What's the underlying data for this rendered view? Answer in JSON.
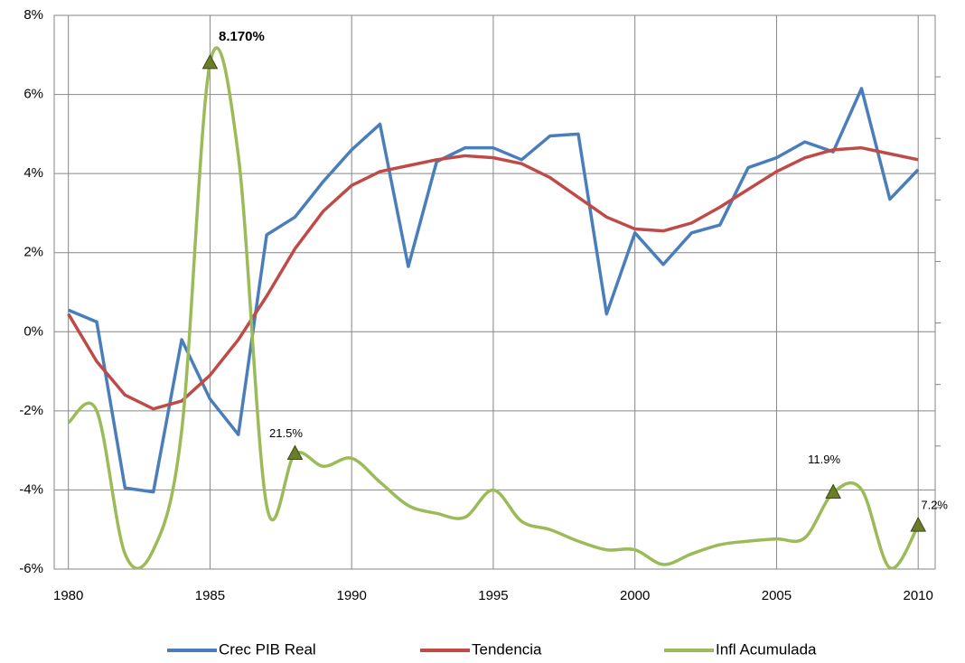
{
  "chart_data": {
    "type": "line",
    "x": [
      1980,
      1981,
      1982,
      1983,
      1984,
      1985,
      1986,
      1987,
      1988,
      1989,
      1990,
      1991,
      1992,
      1993,
      1994,
      1995,
      1996,
      1997,
      1998,
      1999,
      2000,
      2001,
      2002,
      2003,
      2004,
      2005,
      2006,
      2007,
      2008,
      2009,
      2010
    ],
    "series": [
      {
        "name": "Crec PIB Real",
        "color": "#4a7ebb",
        "values": [
          0.55,
          0.25,
          -3.95,
          -4.05,
          -0.2,
          -1.7,
          -2.6,
          2.45,
          2.9,
          3.8,
          4.6,
          5.25,
          1.65,
          4.3,
          4.65,
          4.65,
          4.35,
          4.95,
          5.0,
          0.45,
          2.5,
          1.7,
          2.5,
          2.7,
          4.15,
          4.4,
          4.8,
          4.55,
          6.15,
          3.35,
          4.1
        ]
      },
      {
        "name": "Tendencia",
        "color": "#be4b48",
        "values": [
          0.45,
          -0.75,
          -1.6,
          -1.95,
          -1.75,
          -1.1,
          -0.2,
          0.9,
          2.1,
          3.05,
          3.7,
          4.05,
          4.2,
          4.35,
          4.45,
          4.4,
          4.25,
          3.9,
          3.4,
          2.9,
          2.6,
          2.55,
          2.75,
          3.15,
          3.6,
          4.05,
          4.4,
          4.6,
          4.65,
          4.5,
          4.35
        ]
      },
      {
        "name": "Infl Acumulada",
        "color": "#9bbb59",
        "axis": "y2",
        "smooth": true,
        "values": [
          34.6,
          41.4,
          4.7,
          5.0,
          30.6,
          8170,
          2000,
          9.8,
          21.5,
          17.8,
          20.1,
          14.0,
          9.8,
          8.7,
          8.2,
          12.4,
          7.7,
          6.8,
          5.7,
          5.0,
          5.0,
          4.0,
          4.7,
          5.4,
          5.7,
          5.9,
          6.0,
          11.9,
          12.5,
          3.8,
          7.2
        ],
        "value_labels": [
          null,
          null,
          null,
          null,
          null,
          "8.170%",
          null,
          null,
          "21.5%",
          null,
          null,
          null,
          null,
          null,
          null,
          null,
          null,
          null,
          null,
          null,
          null,
          null,
          null,
          null,
          null,
          null,
          null,
          "11.9%",
          null,
          null,
          "7.2%"
        ]
      }
    ],
    "xlim": [
      1979.5,
      2010.6
    ],
    "xticks": [
      1980,
      1985,
      1990,
      1995,
      2000,
      2005,
      2010
    ],
    "ylim": [
      -6,
      8
    ],
    "yticks": [
      {
        "value": -6,
        "label": "-6%"
      },
      {
        "value": -4,
        "label": "-4%"
      },
      {
        "value": -2,
        "label": "-2%"
      },
      {
        "value": 0,
        "label": "0%"
      },
      {
        "value": 2,
        "label": "2%"
      },
      {
        "value": 4,
        "label": "4%"
      },
      {
        "value": 6,
        "label": "6%"
      },
      {
        "value": 8,
        "label": "8%"
      }
    ],
    "y2lim": [
      3.73,
      16900
    ],
    "y2scale": "log",
    "grid": true,
    "legend": "bottom"
  }
}
